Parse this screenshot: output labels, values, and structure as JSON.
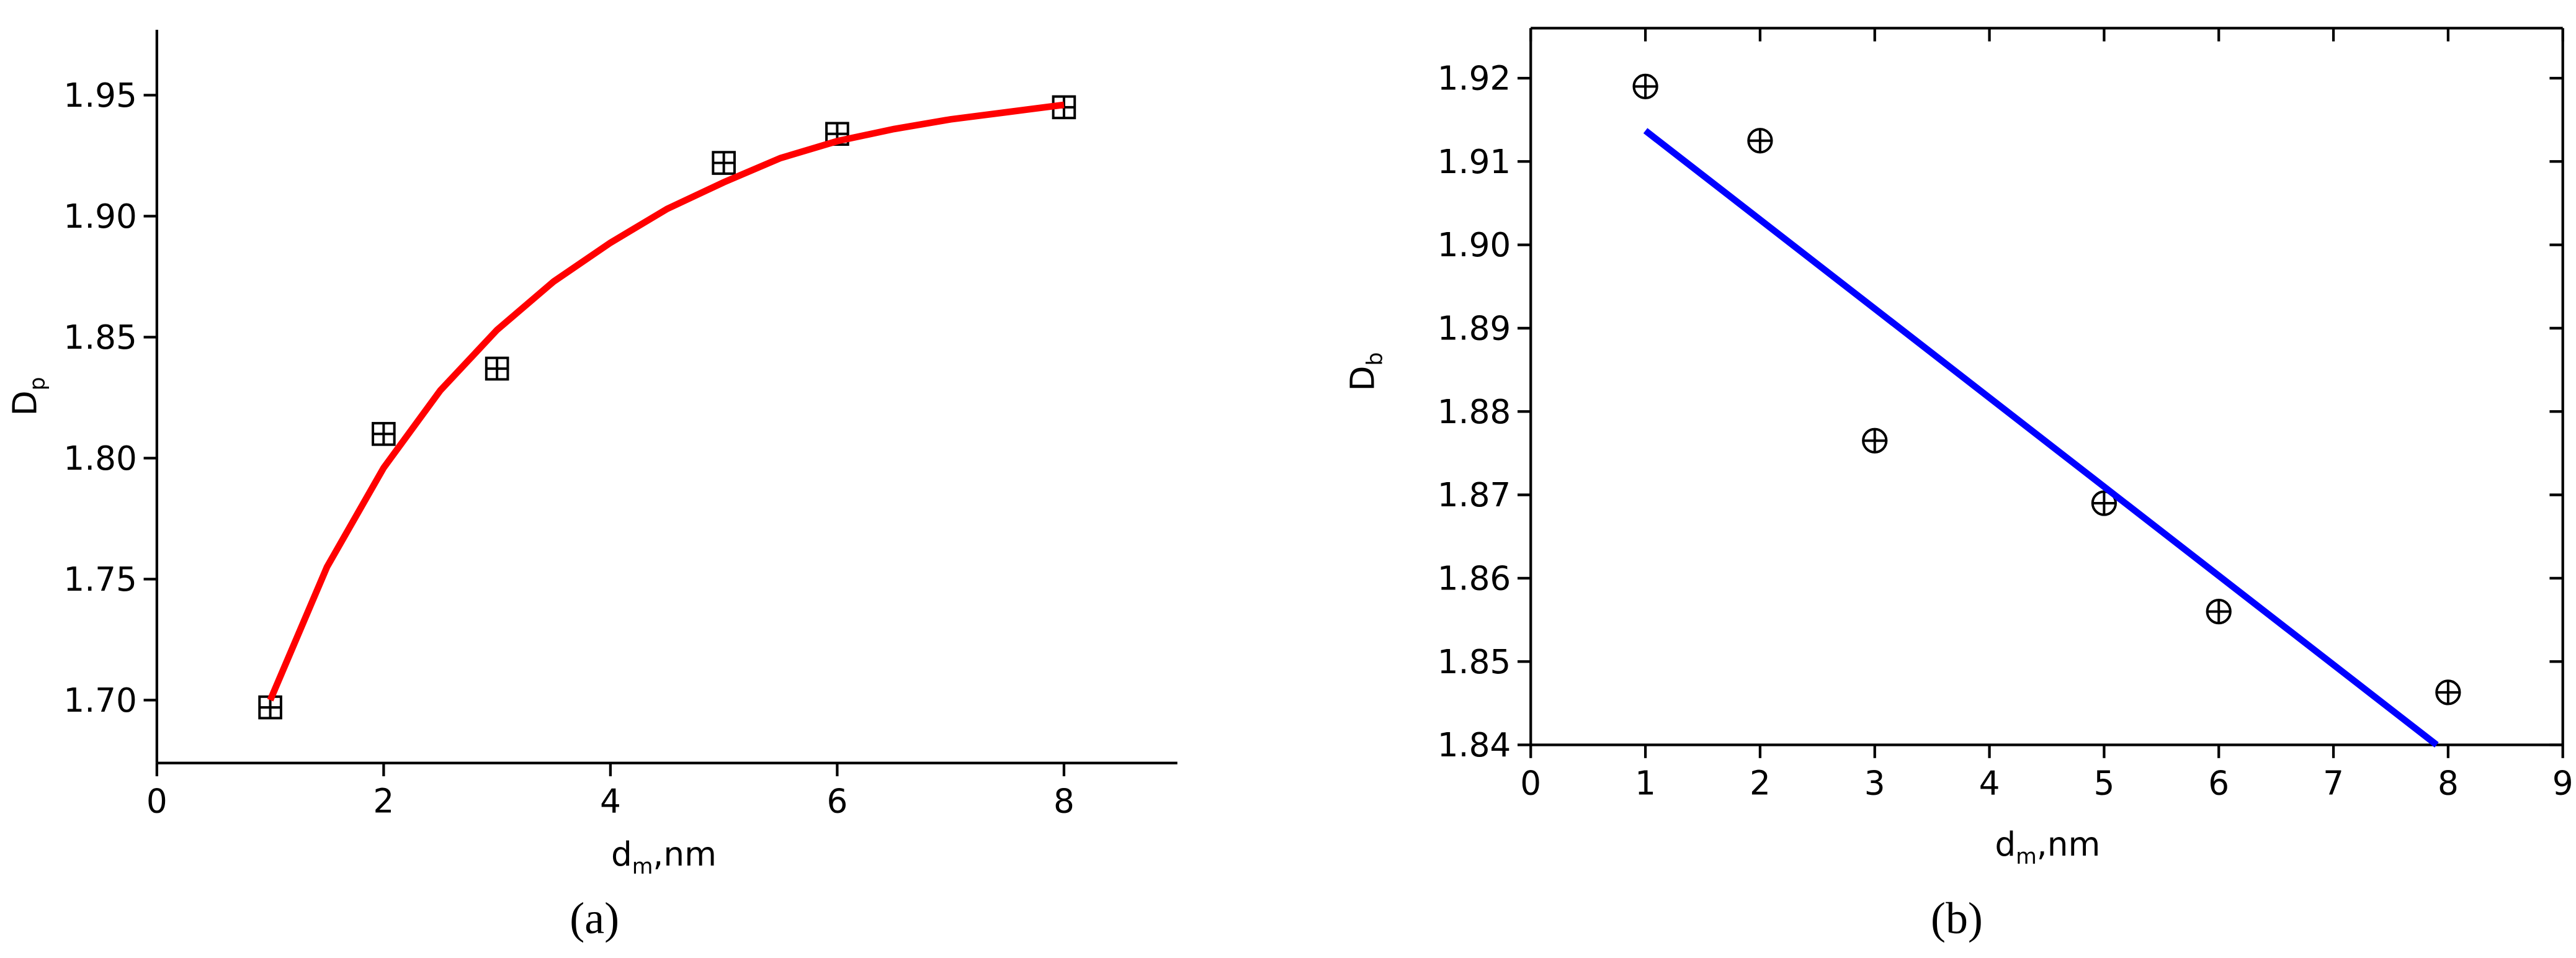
{
  "chart_data": [
    {
      "type": "scatter",
      "caption": "(a)",
      "xlabel": {
        "main": "d",
        "sub": "m",
        "rest": ",nm"
      },
      "ylabel": {
        "main": "D",
        "sub": "p"
      },
      "xlim": [
        0,
        9
      ],
      "ylim": [
        1.674,
        1.977
      ],
      "xticks": [
        0,
        2,
        4,
        6,
        8
      ],
      "yticks": [
        {
          "value": 1.7,
          "label": "1.70"
        },
        1.75,
        {
          "value": 1.8,
          "label": "1.80"
        },
        1.85,
        {
          "value": 1.9,
          "label": "1.90"
        },
        1.95
      ],
      "frame": false,
      "series": [
        {
          "color": "#000000",
          "marker": "boxed-plus",
          "x": [
            1,
            2,
            3,
            5,
            6,
            8
          ],
          "values": [
            1.697,
            1.81,
            1.837,
            1.922,
            1.934,
            1.945
          ]
        },
        {
          "color": "#ff0000",
          "line": true,
          "x": [
            1,
            1.5,
            2,
            2.5,
            3,
            3.5,
            4,
            4.5,
            5,
            5.5,
            6,
            6.5,
            7,
            7.5,
            8
          ],
          "values": [
            1.7,
            1.755,
            1.796,
            1.828,
            1.853,
            1.873,
            1.889,
            1.903,
            1.914,
            1.924,
            1.931,
            1.936,
            1.94,
            1.943,
            1.946
          ]
        }
      ]
    },
    {
      "type": "scatter",
      "caption": "(b)",
      "xlabel": {
        "main": "d",
        "sub": "m",
        "rest": ",nm"
      },
      "ylabel": {
        "main": "D",
        "sub": "b"
      },
      "xlim": [
        0,
        9
      ],
      "ylim": [
        1.84,
        1.926
      ],
      "xticks": [
        0,
        1,
        2,
        3,
        4,
        5,
        6,
        7,
        8,
        9
      ],
      "yticks": [
        1.84,
        1.85,
        1.86,
        1.87,
        1.88,
        1.89,
        {
          "value": 1.9,
          "label": "1.90"
        },
        1.91,
        1.92
      ],
      "frame": true,
      "series": [
        {
          "color": "#000000",
          "marker": "circled-plus",
          "x": [
            1,
            2,
            3,
            5,
            6,
            8
          ],
          "values": [
            1.919,
            1.9125,
            1.8765,
            1.869,
            1.856,
            1.8463
          ]
        },
        {
          "color": "#0000ff",
          "line": true,
          "x": [
            1,
            7.9
          ],
          "values": [
            1.9137,
            1.84
          ]
        }
      ]
    }
  ]
}
